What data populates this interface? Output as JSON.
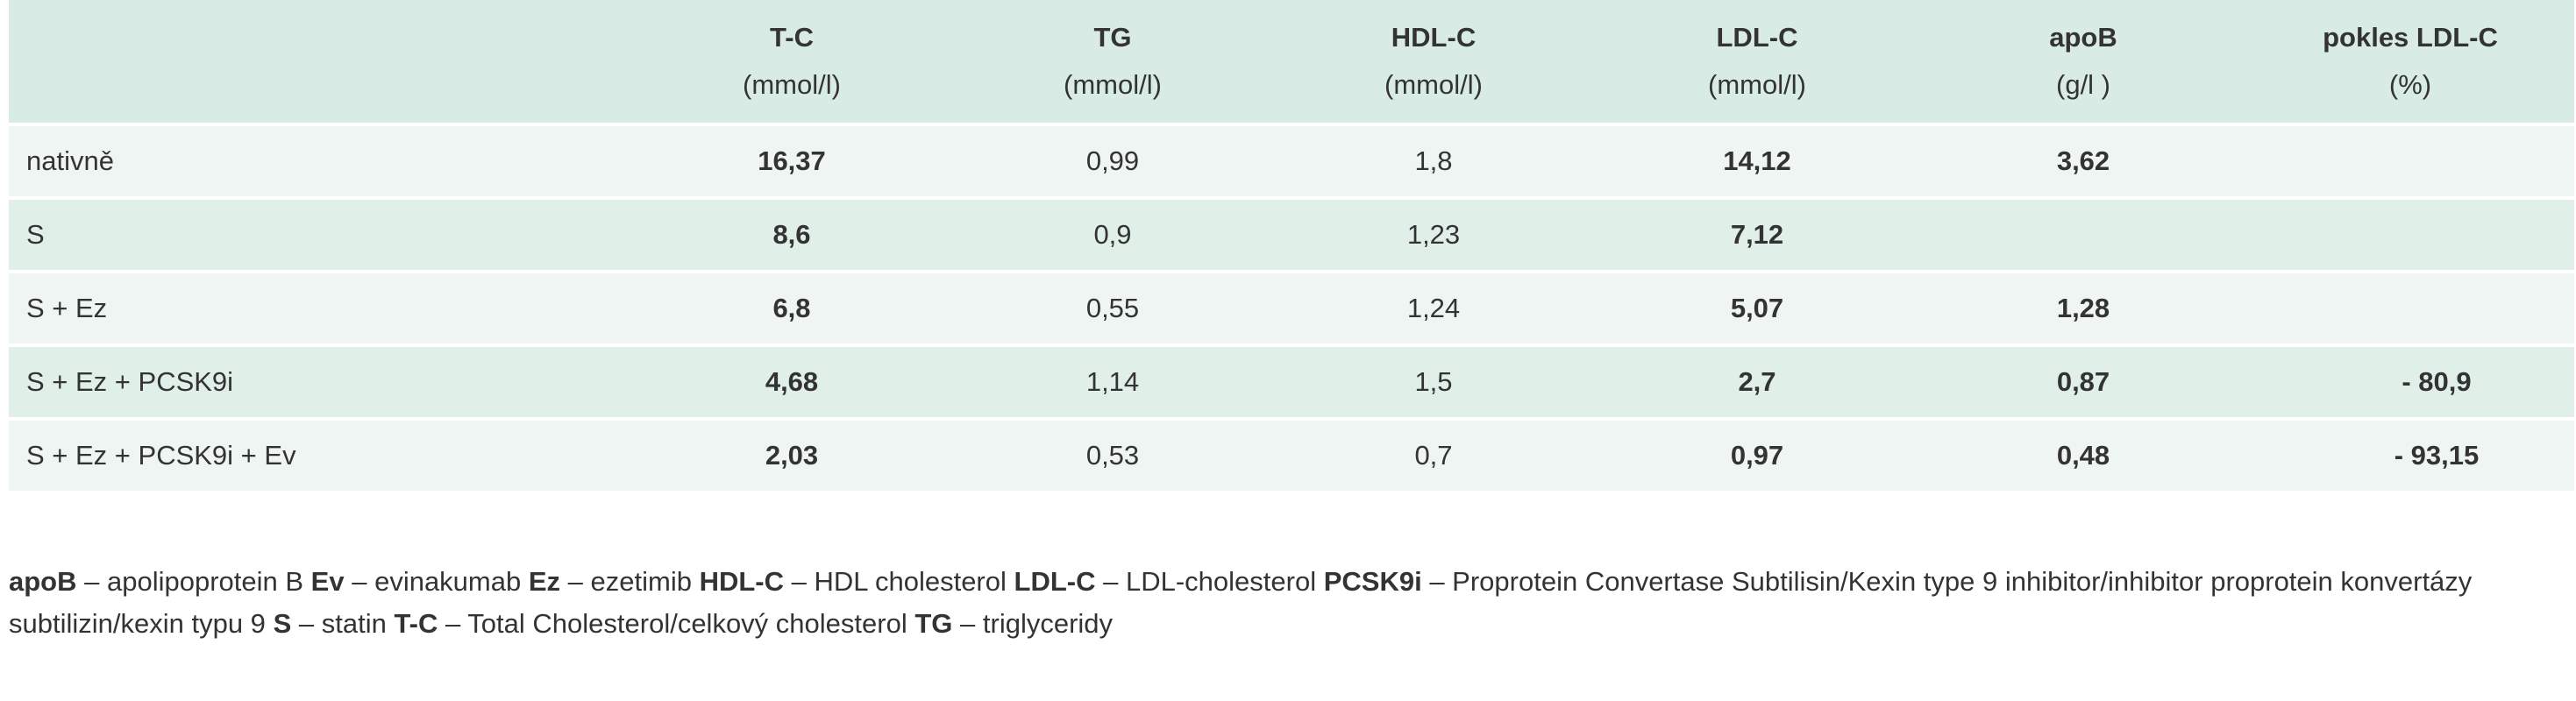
{
  "table": {
    "columns": [
      {
        "name": "",
        "unit": ""
      },
      {
        "name": "T-C",
        "unit": "(mmol/l)"
      },
      {
        "name": "TG",
        "unit": "(mmol/l)"
      },
      {
        "name": "HDL-C",
        "unit": "(mmol/l)"
      },
      {
        "name": "LDL-C",
        "unit": "(mmol/l)"
      },
      {
        "name": "apoB",
        "unit": "(g/l )"
      },
      {
        "name": "pokles LDL-C",
        "unit": "(%)"
      }
    ],
    "rows": [
      {
        "label": "nativně",
        "tc": "16,37",
        "tg": "0,99",
        "hdl": "1,8",
        "ldl": "14,12",
        "apob": "3,62",
        "pokles": ""
      },
      {
        "label": "S",
        "tc": "8,6",
        "tg": "0,9",
        "hdl": "1,23",
        "ldl": "7,12",
        "apob": "",
        "pokles": ""
      },
      {
        "label": "S + Ez",
        "tc": "6,8",
        "tg": "0,55",
        "hdl": "1,24",
        "ldl": "5,07",
        "apob": "1,28",
        "pokles": ""
      },
      {
        "label": "S + Ez + PCSK9i",
        "tc": "4,68",
        "tg": "1,14",
        "hdl": "1,5",
        "ldl": "2,7",
        "apob": "0,87",
        "pokles": "- 80,9"
      },
      {
        "label": "S + Ez + PCSK9i + Ev",
        "tc": "2,03",
        "tg": "0,53",
        "hdl": "0,7",
        "ldl": "0,97",
        "apob": "0,48",
        "pokles": "- 93,15"
      }
    ]
  },
  "legend": [
    {
      "abbr": "apoB",
      "text": "– apolipoprotein B"
    },
    {
      "abbr": "Ev",
      "text": "– evinakumab"
    },
    {
      "abbr": "Ez",
      "text": "– ezetimib"
    },
    {
      "abbr": "HDL-C",
      "text": "– HDL cholesterol"
    },
    {
      "abbr": "LDL-C",
      "text": "– LDL-cholesterol"
    },
    {
      "abbr": "PCSK9i",
      "text": "– Proprotein Convertase Subtilisin/Kexin type 9 inhibitor/inhibitor proprotein konvertázy subtilizin/kexin typu 9"
    },
    {
      "abbr": "S",
      "text": "– statin"
    },
    {
      "abbr": "T-C",
      "text": "– Total Cholesterol/celkový cholesterol"
    },
    {
      "abbr": "TG",
      "text": "– triglyceridy"
    }
  ],
  "colors": {
    "header_bg": "#d8ebe4",
    "row_light": "#eef5f2",
    "row_dark": "#e1efe9",
    "text": "#333333"
  }
}
